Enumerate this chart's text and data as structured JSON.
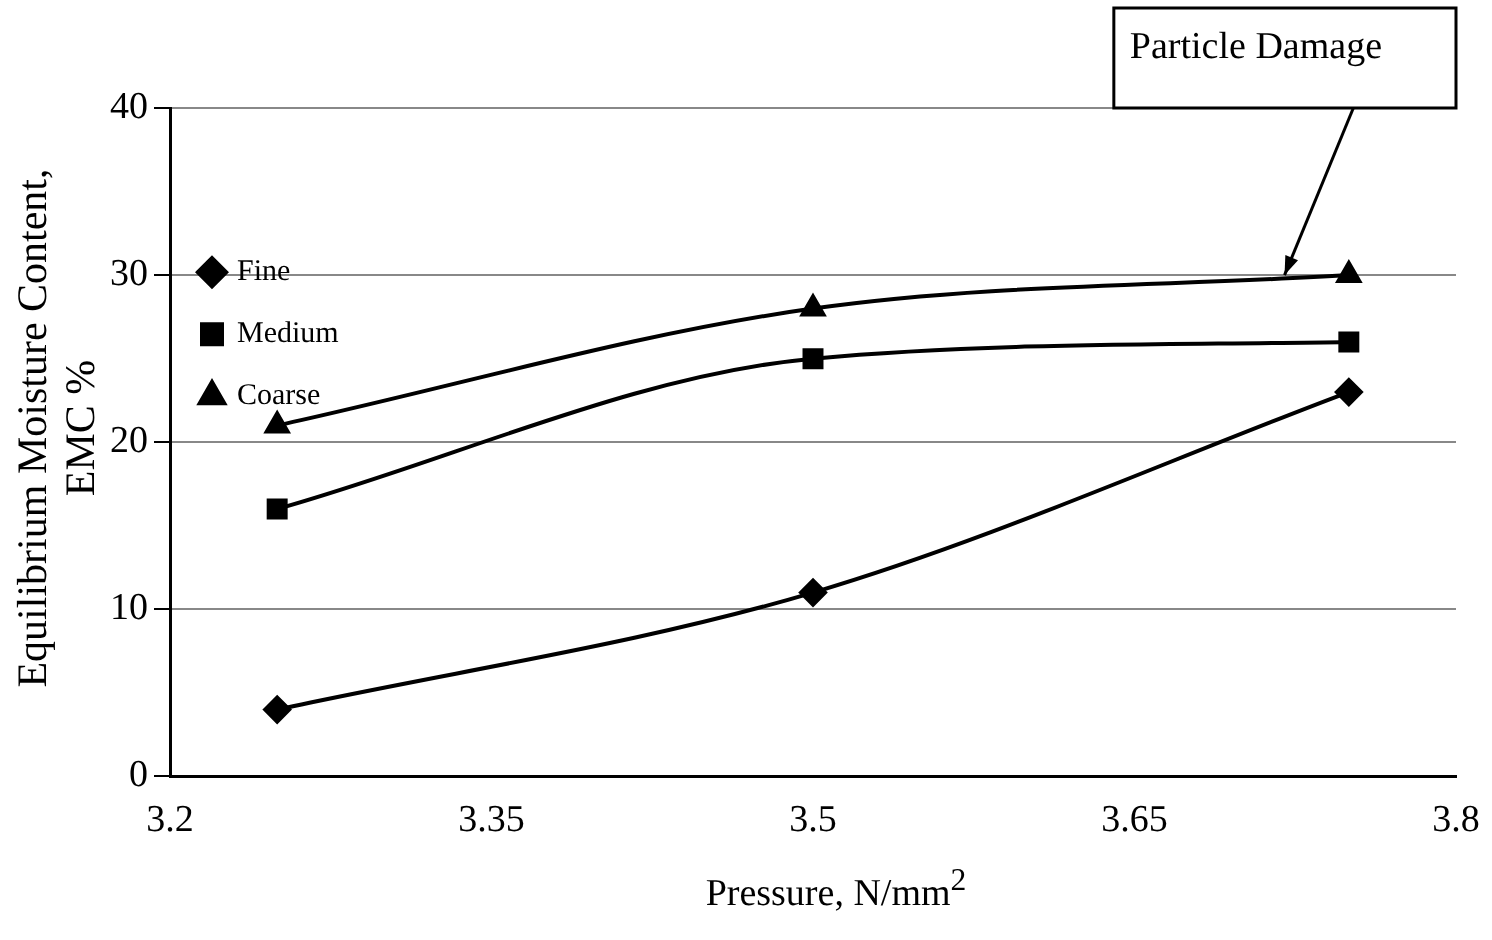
{
  "chart_data": {
    "type": "line",
    "xlabel": "Pressure, N/mm$^{2}$",
    "ylabel": "Equilibrium Moisture Content, EMC %",
    "x": [
      3.25,
      3.5,
      3.75
    ],
    "series": [
      {
        "name": "Fine",
        "color": "#000000",
        "values": [
          4,
          11,
          23
        ],
        "marker": "diamond"
      },
      {
        "name": "Medium",
        "color": "#000000",
        "values": [
          16,
          25,
          26
        ],
        "marker": "square"
      },
      {
        "name": "Coarse",
        "color": "#000000",
        "values": [
          21,
          28,
          30
        ],
        "marker": "triangle"
      }
    ],
    "xlim": [
      3.2,
      3.8
    ],
    "xticks": [
      3.2,
      3.35,
      3.5,
      3.65,
      3.8
    ],
    "ylim": [
      0,
      40
    ],
    "yticks": [
      0,
      10,
      20,
      30,
      40
    ],
    "grid": "y",
    "legend": "top",
    "line_style": "solid",
    "annotations": [
      {
        "text": "Particle Damage",
        "x": 3.72,
        "y": 30
      }
    ]
  }
}
